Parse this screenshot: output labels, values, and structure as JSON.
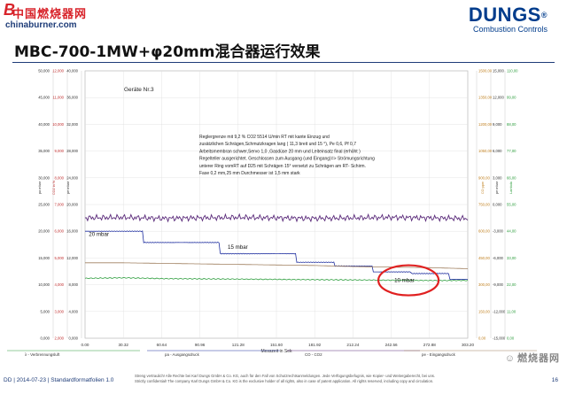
{
  "watermark": {
    "b_letter": "B",
    "name": "中国燃烧器网",
    "url": "chinaburner.com"
  },
  "logo": {
    "brand": "DUNGS",
    "reg": "®",
    "sub": "Combustion Controls"
  },
  "title": "MBC-700-1MW+φ20mm混合器运行效果",
  "chart_data": {
    "type": "line",
    "device_label": "Geräte Nr.3",
    "x": [
      0.0,
      30.32,
      60.64,
      90.96,
      121.28,
      151.6,
      181.92,
      212.24,
      242.56,
      272.88,
      303.2
    ],
    "xlabel": "Messzeit in Sek",
    "xlim": [
      0,
      303.2
    ],
    "y_axes": [
      {
        "label": "pa mbar",
        "ticks": [
          "50,000",
          "45,000",
          "40,000",
          "35,000",
          "30,000",
          "25,000",
          "20,000",
          "15,000",
          "10,000",
          "5,000",
          "0,000"
        ]
      },
      {
        "label": "CO2 in %",
        "ticks": [
          "12,000",
          "11,000",
          "10,000",
          "9,000",
          "8,000",
          "7,000",
          "6,000",
          "5,000",
          "4,000",
          "3,000",
          "2,000"
        ]
      },
      {
        "label": "pe mbar",
        "ticks": [
          "40,000",
          "36,000",
          "32,000",
          "28,000",
          "24,000",
          "20,000",
          "16,000",
          "12,000",
          "8,000",
          "4,000",
          "0,000"
        ]
      },
      {
        "label": "CO ppm",
        "ticks": [
          "1500,00",
          "1350,00",
          "1200,00",
          "1050,00",
          "900,00",
          "750,00",
          "600,00",
          "450,00",
          "300,00",
          "150,00",
          "0,00"
        ]
      },
      {
        "label": "pe mbar",
        "ticks": [
          "15,000",
          "12,000",
          "9,000",
          "6,000",
          "3,000",
          "0,000",
          "-3,000",
          "-6,000",
          "-9,000",
          "-12,000",
          "-15,000"
        ]
      },
      {
        "label": "Lambda",
        "ticks": [
          "110,00",
          "99,00",
          "88,00",
          "77,00",
          "66,00",
          "55,00",
          "44,00",
          "33,00",
          "22,00",
          "11,00",
          "0,00"
        ]
      }
    ],
    "series": [
      {
        "name": "λ - Verbrennungsluft",
        "color": "#2e9e3e",
        "values": [
          11.2,
          11.3,
          11.15,
          11.1,
          11.05,
          11.0,
          10.95,
          10.9,
          10.85,
          10.8,
          10.8
        ]
      },
      {
        "name": "pa - Ausgangsdruck",
        "color": "#2030a0",
        "values": [
          20.0,
          20.0,
          17.9,
          17.9,
          15.8,
          15.8,
          14.2,
          13.5,
          12.4,
          12.1,
          11.0
        ]
      },
      {
        "name": "CO - CO2",
        "color": "#5a2a7a",
        "values": [
          22.5,
          22.6,
          22.4,
          22.5,
          22.6,
          22.5,
          22.4,
          22.5,
          22.6,
          22.5,
          22.4
        ]
      },
      {
        "name": "pe - Eingangsdruck",
        "color": "#a08060",
        "values": [
          14.1,
          14.1,
          14.0,
          13.9,
          13.8,
          13.7,
          13.6,
          13.4,
          13.3,
          13.2,
          13.0
        ]
      }
    ],
    "annotations": [
      {
        "text": "20 mbar",
        "x": 3,
        "y": 19.1
      },
      {
        "text": "15 mbar",
        "x": 113,
        "y": 16.7
      },
      {
        "text": "10 mbar",
        "x": 245,
        "y": 10.5,
        "circled": true
      }
    ],
    "note_lines": [
      "Reglergrenze mit 9,2 % CO2  5514 U/min RT mit kante Einzug und",
      "zusätzlichen Schrägen,Schmutzkragen lang ( 11,3 breit und 15 °), Pe 0,6, Pf 0,7",
      "Arbeitsmembran schwer,Servo 1,0 ,Gasdüse 20 mm und Leiteinsatz final (erhöht )",
      "Regelteller ausgerichtet. Geschlossen zum Ausgang (und Eingang)=> Strömungsrichtung",
      "unterer Ring vomRT auf D25 mit Schrägen 15° versetzt zu Schrägen am RT- Schirm.",
      "Fase 0,2 mm,25 mm Durchmesser ist 1,5 mm stark"
    ]
  },
  "footer": {
    "left": "DD | 2014-07-23 | Standardformatfolien 1.0",
    "legal1": "Streng vertraulich! Alle Rechte bei Karl Dungs GmbH & Co. KG, auch für den Fall von Schutzrechtsanmeldungen. Jede Verfügungsbefugnis, wie Kopier- und Weitergaberecht, bei uns.",
    "legal2": "Strictly confidential! The company Karl Dungs GmbH & Co. KG is the exclusive holder of all rights, also in case of patent application. All rights reserved, including copy and circulation.",
    "page": "16"
  },
  "wechat": {
    "name": "燃烧器网"
  }
}
